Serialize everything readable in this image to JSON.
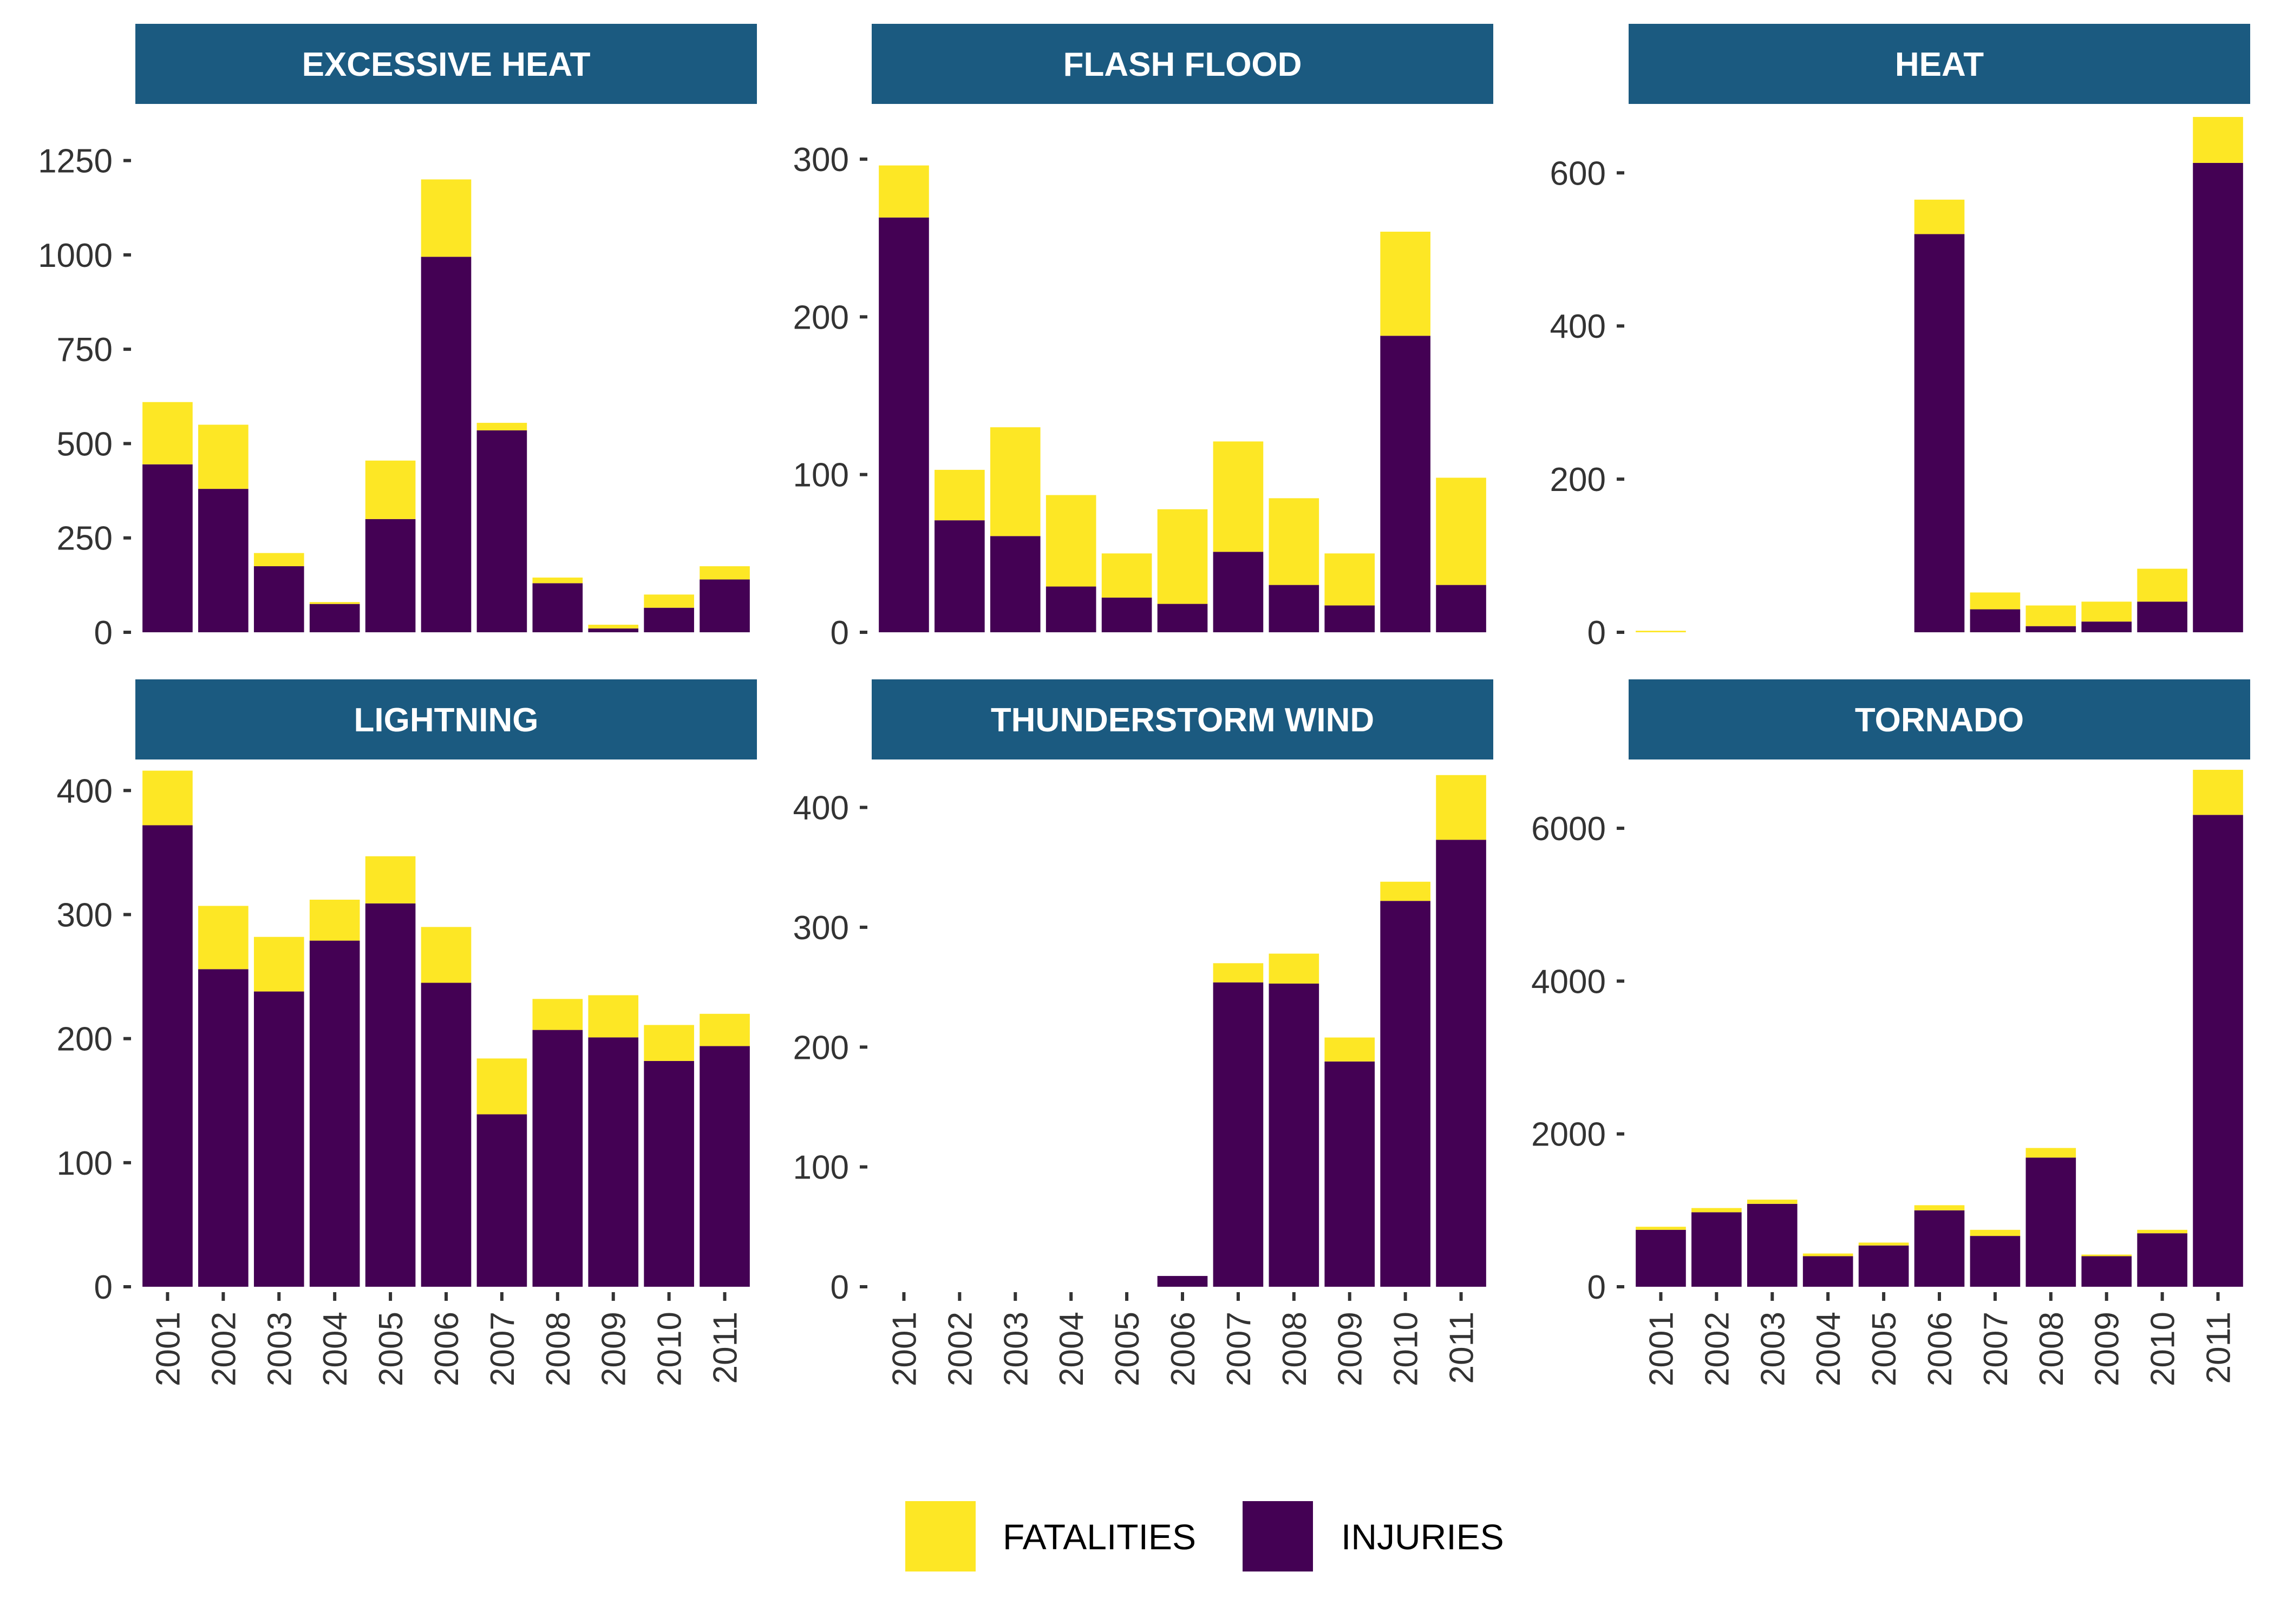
{
  "chart_data": {
    "type": "bar",
    "stacked": true,
    "facet_layout": "3 columns x 2 rows, free y scales",
    "legend": {
      "placement": "bottom",
      "entries": [
        {
          "label": "FATALITIES",
          "color": "#FDE725"
        },
        {
          "label": "INJURIES",
          "color": "#440154"
        }
      ]
    },
    "colors": {
      "strip_background": "#1B5A80",
      "strip_text": "#FFFFFF",
      "fatalities": "#FDE725",
      "injuries": "#440154",
      "axis_text": "#333333"
    },
    "xlabel": "",
    "ylabel": "",
    "panels": [
      {
        "title": "EXCESSIVE HEAT",
        "categories": [
          "2001",
          "2002",
          "2003",
          "2004",
          "2005",
          "2006",
          "2007",
          "2008",
          "2009",
          "2010",
          "2011"
        ],
        "ylim": [
          0,
          1400
        ],
        "yticks": [
          0,
          250,
          500,
          750,
          1000,
          1250
        ],
        "series": [
          {
            "name": "FATALITIES",
            "values": [
              165,
              170,
              35,
              5,
              155,
              205,
              20,
              15,
              10,
              35,
              35
            ]
          },
          {
            "name": "INJURIES",
            "values": [
              445,
              380,
              175,
              75,
              300,
              995,
              535,
              130,
              10,
              65,
              140
            ]
          }
        ]
      },
      {
        "title": "FLASH FLOOD",
        "categories": [
          "2001",
          "2002",
          "2003",
          "2004",
          "2005",
          "2006",
          "2007",
          "2008",
          "2009",
          "2010",
          "2011"
        ],
        "ylim": [
          0,
          335
        ],
        "yticks": [
          0,
          100,
          200,
          300
        ],
        "series": [
          {
            "name": "FATALITIES",
            "values": [
              33,
              32,
              69,
              58,
              28,
              60,
              70,
              55,
              33,
              66,
              68
            ]
          },
          {
            "name": "INJURIES",
            "values": [
              263,
              71,
              61,
              29,
              22,
              18,
              51,
              30,
              17,
              188,
              30
            ]
          }
        ]
      },
      {
        "title": "HEAT",
        "categories": [
          "2001",
          "2002",
          "2003",
          "2004",
          "2005",
          "2006",
          "2007",
          "2008",
          "2009",
          "2010",
          "2011"
        ],
        "ylim": [
          0,
          690
        ],
        "yticks": [
          0,
          200,
          400,
          600
        ],
        "series": [
          {
            "name": "FATALITIES",
            "values": [
              2,
              0,
              0,
              0,
              0,
              45,
              22,
              27,
              26,
              43,
              60
            ]
          },
          {
            "name": "INJURIES",
            "values": [
              0,
              0,
              0,
              0,
              0,
              520,
              30,
              8,
              14,
              40,
              613
            ]
          }
        ]
      },
      {
        "title": "LIGHTNING",
        "categories": [
          "2001",
          "2002",
          "2003",
          "2004",
          "2005",
          "2006",
          "2007",
          "2008",
          "2009",
          "2010",
          "2011"
        ],
        "ylim": [
          0,
          425
        ],
        "yticks": [
          0,
          100,
          200,
          300,
          400
        ],
        "series": [
          {
            "name": "FATALITIES",
            "values": [
              44,
              51,
              44,
              33,
              38,
              45,
              45,
              25,
              34,
              29,
              26
            ]
          },
          {
            "name": "INJURIES",
            "values": [
              372,
              256,
              238,
              279,
              309,
              245,
              139,
              207,
              201,
              182,
              194
            ]
          }
        ]
      },
      {
        "title": "THUNDERSTORM WIND",
        "categories": [
          "2001",
          "2002",
          "2003",
          "2004",
          "2005",
          "2006",
          "2007",
          "2008",
          "2009",
          "2010",
          "2011"
        ],
        "ylim": [
          0,
          440
        ],
        "yticks": [
          0,
          100,
          200,
          300,
          400
        ],
        "series": [
          {
            "name": "FATALITIES",
            "values": [
              0,
              0,
              0,
              0,
              0,
              0,
              16,
              25,
              20,
              16,
              54
            ]
          },
          {
            "name": "INJURIES",
            "values": [
              0,
              0,
              0,
              0,
              0,
              9,
              254,
              253,
              188,
              322,
              373
            ]
          }
        ]
      },
      {
        "title": "TORNADO",
        "categories": [
          "2001",
          "2002",
          "2003",
          "2004",
          "2005",
          "2006",
          "2007",
          "2008",
          "2009",
          "2010",
          "2011"
        ],
        "ylim": [
          0,
          6900
        ],
        "yticks": [
          0,
          2000,
          4000,
          6000
        ],
        "series": [
          {
            "name": "FATALITIES",
            "values": [
              40,
              55,
              55,
              35,
              38,
              67,
              80,
              126,
              21,
              45,
              590
            ]
          },
          {
            "name": "INJURIES",
            "values": [
              745,
              975,
              1085,
              400,
              540,
              1000,
              665,
              1690,
              400,
              700,
              6175
            ]
          }
        ]
      }
    ]
  }
}
